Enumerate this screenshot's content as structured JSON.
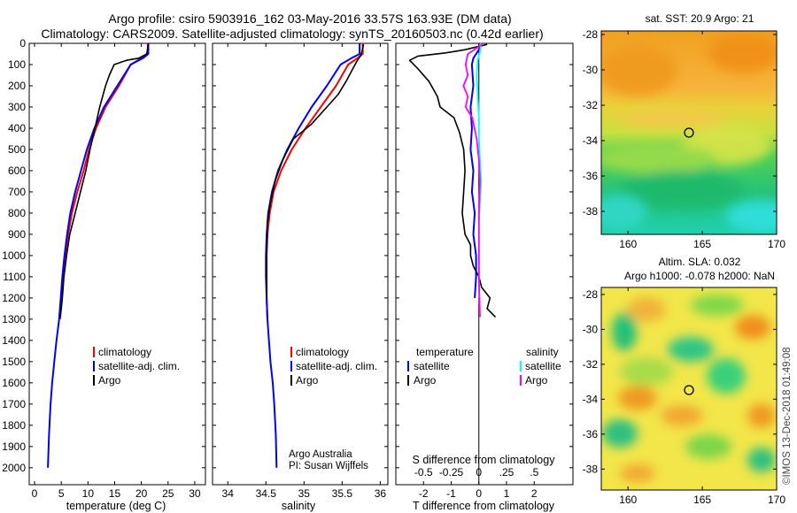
{
  "header": {
    "line1": "Argo profile: csiro 5903916_162 03-May-2016 33.57S 163.93E (DM data)",
    "line2": "Climatology: CARS2009. Satellite-adjusted climatology: synTS_20160503.nc (0.42d earlier)"
  },
  "colors": {
    "climatology": "#ff0000",
    "satellite": "#0000ff",
    "argo": "#000000",
    "salinity_satellite": "#00ffff",
    "salinity_argo": "#ff00ff"
  },
  "chart_data": [
    {
      "type": "line",
      "id": "temperature",
      "xlabel": "temperature (deg C)",
      "ylabel": "",
      "xlim": [
        -1,
        32
      ],
      "ylim": [
        2080,
        0
      ],
      "xticks": [
        0,
        5,
        10,
        15,
        20,
        25,
        30
      ],
      "yticks": [
        0,
        100,
        200,
        300,
        400,
        500,
        600,
        700,
        800,
        900,
        1000,
        1100,
        1200,
        1300,
        1400,
        1500,
        1600,
        1700,
        1800,
        1900,
        2000
      ],
      "legend": [
        "climatology",
        "satellite-adj. clim.",
        "Argo"
      ],
      "series": [
        {
          "name": "climatology",
          "color": "#ff0000",
          "x": [
            21.2,
            21.2,
            20,
            18,
            15.8,
            13.3,
            11.5,
            10.2,
            9.2,
            8,
            7,
            6.3,
            5.8,
            5.4,
            5,
            4.8
          ],
          "y": [
            0,
            50,
            70,
            100,
            200,
            300,
            400,
            500,
            600,
            700,
            800,
            900,
            1000,
            1100,
            1200,
            1300
          ]
        },
        {
          "name": "satellite-adj. clim.",
          "color": "#0000ff",
          "x": [
            21.3,
            21.3,
            20.3,
            18,
            15.5,
            13,
            11.2,
            9.8,
            8.7,
            7.6,
            6.7,
            6.1,
            5.6,
            5.2,
            4.9,
            4.6,
            4.1,
            3.7,
            3.3,
            3,
            2.7,
            2.5
          ],
          "y": [
            0,
            50,
            70,
            100,
            200,
            300,
            400,
            500,
            600,
            700,
            800,
            900,
            1000,
            1100,
            1200,
            1300,
            1400,
            1500,
            1600,
            1700,
            1850,
            2000
          ]
        },
        {
          "name": "Argo",
          "color": "#000000",
          "x": [
            21.3,
            21,
            19.5,
            17.2,
            14.9,
            14,
            13.3,
            12.2,
            11.3,
            10.4,
            9.6,
            8.6,
            7.6,
            6.6,
            6,
            5.5,
            5.2,
            5,
            4.8
          ],
          "y": [
            5,
            50,
            70,
            80,
            100,
            150,
            200,
            300,
            400,
            500,
            600,
            700,
            800,
            900,
            1000,
            1100,
            1200,
            1250,
            1290
          ]
        }
      ]
    },
    {
      "type": "line",
      "id": "salinity",
      "xlabel": "salinity",
      "ylabel": "",
      "xlim": [
        33.8,
        36.1
      ],
      "ylim": [
        2080,
        0
      ],
      "xticks": [
        34,
        34.5,
        35,
        35.5,
        36
      ],
      "legend": [
        "climatology",
        "satellite-adj. clim.",
        "Argo"
      ],
      "annotations": [
        "Argo Australia",
        "PI: Susan Wijffels"
      ],
      "series": [
        {
          "name": "climatology",
          "color": "#ff0000",
          "x": [
            35.77,
            35.77,
            35.7,
            35.58,
            35.42,
            35.22,
            35.02,
            34.84,
            34.7,
            34.6,
            34.55,
            34.52,
            34.51,
            34.51,
            34.51,
            34.52
          ],
          "y": [
            0,
            50,
            70,
            100,
            200,
            300,
            400,
            500,
            600,
            700,
            800,
            900,
            1000,
            1100,
            1200,
            1300
          ]
        },
        {
          "name": "satellite-adj. clim.",
          "color": "#0000ff",
          "x": [
            35.73,
            35.73,
            35.62,
            35.48,
            35.3,
            35.1,
            34.93,
            34.78,
            34.66,
            34.58,
            34.53,
            34.51,
            34.5,
            34.5,
            34.51,
            34.52,
            34.54,
            34.56,
            34.59,
            34.61,
            34.63,
            34.64
          ],
          "y": [
            0,
            50,
            70,
            100,
            200,
            300,
            400,
            500,
            600,
            700,
            800,
            900,
            1000,
            1100,
            1200,
            1300,
            1400,
            1500,
            1600,
            1700,
            1850,
            2000
          ]
        },
        {
          "name": "Argo",
          "color": "#000000",
          "x": [
            35.78,
            35.76,
            35.74,
            35.7,
            35.64,
            35.55,
            35.45,
            35.3,
            35.1,
            34.86,
            34.72,
            34.62,
            34.56,
            34.52,
            34.51,
            34.51,
            34.51
          ],
          "y": [
            5,
            40,
            60,
            80,
            120,
            180,
            240,
            300,
            380,
            450,
            550,
            650,
            750,
            850,
            1000,
            1100,
            1200
          ]
        }
      ]
    },
    {
      "type": "line",
      "id": "difference",
      "xlabel": "T difference from climatology",
      "xlabel_top": "S difference from climatology",
      "xlim": [
        -3,
        3.4
      ],
      "ylim": [
        2080,
        0
      ],
      "xticks": [
        -2,
        -1,
        0,
        1,
        2
      ],
      "xticks_s": [
        -0.5,
        -0.25,
        0,
        0.25,
        0.5
      ],
      "legend": {
        "temperature_heading": "temperature",
        "salinity_heading": "salinity",
        "t_items": [
          "satellite",
          "Argo"
        ],
        "s_items": [
          "satellite",
          "Argo"
        ]
      },
      "series": [
        {
          "name": "temperature satellite",
          "color": "#0000ff",
          "x": [
            0.1,
            0,
            -0.2,
            -0.25,
            -0.2,
            -0.3,
            -0.25,
            -0.3,
            -0.2,
            -0.25,
            -0.15,
            -0.2,
            -0.1,
            -0.1,
            -0.15
          ],
          "y": [
            0,
            30,
            70,
            100,
            200,
            300,
            400,
            500,
            600,
            700,
            800,
            900,
            1000,
            1100,
            1200
          ]
        },
        {
          "name": "temperature Argo",
          "color": "#000000",
          "x": [
            0.3,
            -0.5,
            -1.2,
            -2.2,
            -2.5,
            -2.2,
            -1.8,
            -1.5,
            -1.4,
            -0.9,
            -0.7,
            -0.55,
            -0.5,
            -0.55,
            -0.6,
            -0.5,
            -0.3,
            -0.3,
            -0.2,
            0,
            0.1,
            0.4,
            0.3,
            0.6
          ],
          "y": [
            5,
            30,
            45,
            60,
            80,
            120,
            180,
            250,
            300,
            350,
            420,
            500,
            600,
            700,
            800,
            900,
            950,
            1000,
            1050,
            1100,
            1150,
            1200,
            1250,
            1290
          ]
        }
      ]
    }
  ],
  "maps": {
    "top": {
      "title": "sat. SST: 20.9 Argo: 21",
      "yticks": [
        "-28",
        "-30",
        "-32",
        "-34",
        "-36",
        "-38"
      ],
      "xticks": [
        "160",
        "165",
        "170"
      ]
    },
    "bottom": {
      "title1": "Altim. SLA: 0.032",
      "title2": "Argo h1000: -0.078 h2000: NaN",
      "yticks": [
        "-28",
        "-30",
        "-32",
        "-34",
        "-36",
        "-38"
      ],
      "xticks": [
        "160",
        "165",
        "170"
      ]
    }
  },
  "credit": "©IMOS 13-Dec-2018 01:49:08"
}
